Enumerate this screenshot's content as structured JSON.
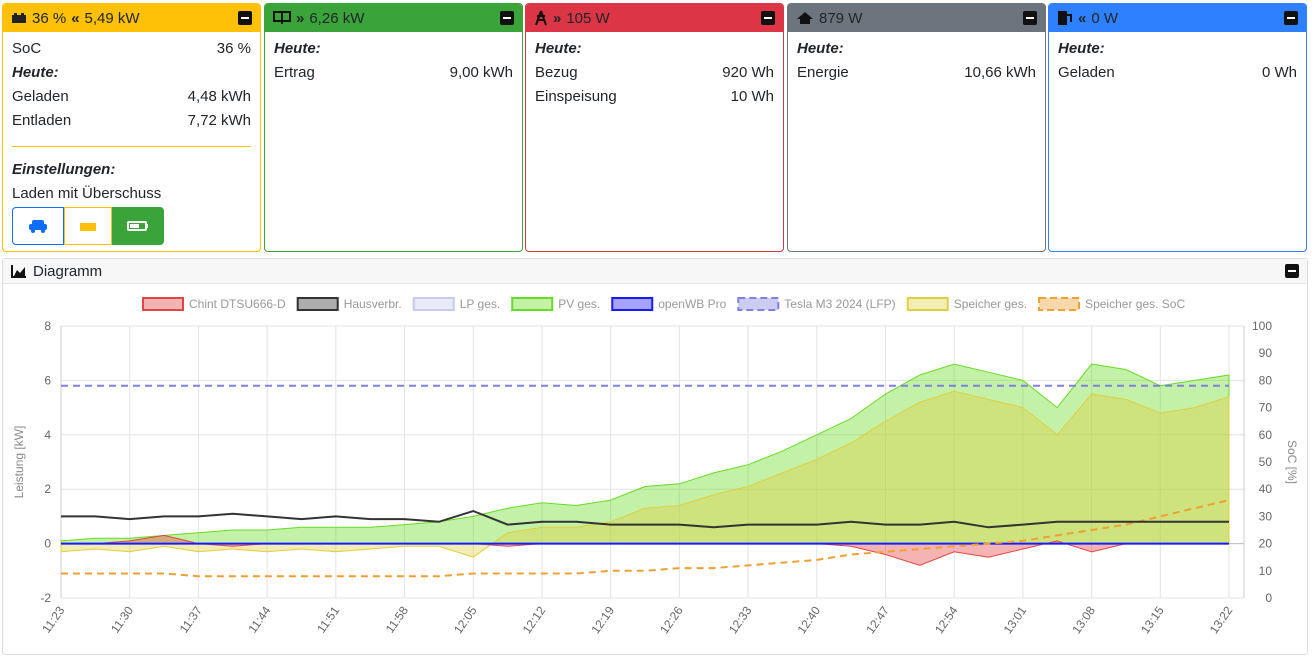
{
  "cards": [
    {
      "header": {
        "soc": "36 %",
        "power": "5,49 kW"
      },
      "soc_row": [
        "SoC",
        "36 %"
      ],
      "today": "Heute:",
      "rows": [
        [
          "Geladen",
          "4,48 kWh"
        ],
        [
          "Entladen",
          "7,72 kWh"
        ]
      ],
      "settings": "Einstellungen:",
      "mode": "Laden mit Überschuss"
    },
    {
      "header": {
        "power": "6,26 kW"
      },
      "today": "Heute:",
      "rows": [
        [
          "Ertrag",
          "9,00 kWh"
        ]
      ]
    },
    {
      "header": {
        "power": "105 W"
      },
      "today": "Heute:",
      "rows": [
        [
          "Bezug",
          "920 Wh"
        ],
        [
          "Einspeisung",
          "10 Wh"
        ]
      ]
    },
    {
      "header": {
        "power": "879 W"
      },
      "today": "Heute:",
      "rows": [
        [
          "Energie",
          "10,66 kWh"
        ]
      ]
    },
    {
      "header": {
        "power": "0 W"
      },
      "today": "Heute:",
      "rows": [
        [
          "Geladen",
          "0 Wh"
        ]
      ]
    }
  ],
  "panel": {
    "title": "Diagramm"
  },
  "chart_data": {
    "type": "line",
    "y_label": "Leistung [kW]",
    "y2_label": "SoC [%]",
    "grid": true,
    "legend": "top",
    "categories": [
      "11:23",
      null,
      "11:30",
      null,
      "11:37",
      null,
      "11:44",
      null,
      "11:51",
      null,
      "11:58",
      null,
      "12:05",
      null,
      "12:12",
      null,
      "12:19",
      null,
      "12:26",
      null,
      "12:33",
      null,
      "12:40",
      null,
      "12:47",
      null,
      "12:54",
      null,
      "13:01",
      null,
      "13:08",
      null,
      "13:15",
      null,
      "13:22"
    ],
    "ylim": [
      -2,
      8
    ],
    "yticks": [
      -2,
      0,
      2,
      4,
      6,
      8
    ],
    "y2lim": [
      0,
      100
    ],
    "y2ticks": [
      0,
      10,
      20,
      30,
      40,
      50,
      60,
      70,
      80,
      90,
      100
    ],
    "series": [
      {
        "name": "Chint DTSU666-D",
        "color": "#e64444",
        "fill": true,
        "dashed": false,
        "values": [
          0,
          0,
          0.1,
          0.3,
          0,
          -0.1,
          0,
          0,
          0,
          0,
          0,
          0,
          0,
          -0.1,
          0,
          0,
          0,
          0,
          0,
          0,
          0,
          0,
          0,
          -0.1,
          -0.4,
          -0.8,
          -0.3,
          -0.5,
          -0.2,
          0.1,
          -0.3,
          0,
          0,
          0,
          0
        ]
      },
      {
        "name": "Hausverbr.",
        "color": "#333333",
        "fill": false,
        "dashed": false,
        "values": [
          1.0,
          1.0,
          0.9,
          1.0,
          1.0,
          1.1,
          1.0,
          0.9,
          1.0,
          0.9,
          0.9,
          0.8,
          1.2,
          0.7,
          0.8,
          0.8,
          0.7,
          0.7,
          0.7,
          0.6,
          0.7,
          0.7,
          0.7,
          0.8,
          0.7,
          0.7,
          0.8,
          0.6,
          0.7,
          0.8,
          0.8,
          0.8,
          0.8,
          0.8,
          0.8
        ]
      },
      {
        "name": "LP ges.",
        "color": "#c8c8f0",
        "fill": false,
        "dashed": false,
        "values": [
          0,
          0,
          0,
          0,
          0,
          0,
          0,
          0,
          0,
          0,
          0,
          0,
          0,
          0,
          0,
          0,
          0,
          0,
          0,
          0,
          0,
          0,
          0,
          0,
          0,
          0,
          0,
          0,
          0,
          0,
          0,
          0,
          0,
          0,
          0
        ]
      },
      {
        "name": "PV ges.",
        "color": "#66dd22",
        "fill": true,
        "dashed": false,
        "values": [
          0.1,
          0.2,
          0.2,
          0.3,
          0.4,
          0.5,
          0.5,
          0.6,
          0.6,
          0.6,
          0.7,
          0.8,
          1.0,
          1.3,
          1.5,
          1.4,
          1.6,
          2.1,
          2.2,
          2.6,
          2.9,
          3.4,
          4.0,
          4.6,
          5.5,
          6.2,
          6.6,
          6.3,
          6.0,
          5.0,
          6.6,
          6.4,
          5.8,
          6.0,
          6.2
        ]
      },
      {
        "name": "openWB Pro",
        "color": "#1a1aff",
        "fill": false,
        "dashed": false,
        "values": [
          0,
          0,
          0,
          0,
          0,
          0,
          0,
          0,
          0,
          0,
          0,
          0,
          0,
          0,
          0,
          0,
          0,
          0,
          0,
          0,
          0,
          0,
          0,
          0,
          0,
          0,
          0,
          0,
          0,
          0,
          0,
          0,
          0,
          0,
          0
        ]
      },
      {
        "name": "Tesla M3 2024 (LFP)",
        "color": "#8080e0",
        "fill": false,
        "dashed": true,
        "axis": "y2",
        "values": [
          78,
          78,
          78,
          78,
          78,
          78,
          78,
          78,
          78,
          78,
          78,
          78,
          78,
          78,
          78,
          78,
          78,
          78,
          78,
          78,
          78,
          78,
          78,
          78,
          78,
          78,
          78,
          78,
          78,
          78,
          78,
          78,
          78,
          78,
          78
        ]
      },
      {
        "name": "Speicher ges.",
        "color": "#e0d040",
        "fill": true,
        "dashed": false,
        "values": [
          -0.3,
          -0.2,
          -0.3,
          -0.1,
          -0.3,
          -0.2,
          -0.3,
          -0.2,
          -0.3,
          -0.2,
          -0.1,
          -0.1,
          -0.5,
          0.4,
          0.6,
          0.6,
          0.8,
          1.3,
          1.4,
          1.8,
          2.1,
          2.6,
          3.1,
          3.7,
          4.5,
          5.2,
          5.6,
          5.3,
          5.0,
          4.0,
          5.5,
          5.3,
          4.8,
          5.0,
          5.4
        ]
      },
      {
        "name": "Speicher ges. SoC",
        "color": "#f0a030",
        "fill": false,
        "dashed": true,
        "axis": "y2",
        "values": [
          9,
          9,
          9,
          9,
          8,
          8,
          8,
          8,
          8,
          8,
          8,
          8,
          9,
          9,
          9,
          9,
          10,
          10,
          11,
          11,
          12,
          13,
          14,
          16,
          17,
          18,
          19,
          20,
          21,
          23,
          25,
          27,
          30,
          33,
          36
        ]
      }
    ]
  }
}
